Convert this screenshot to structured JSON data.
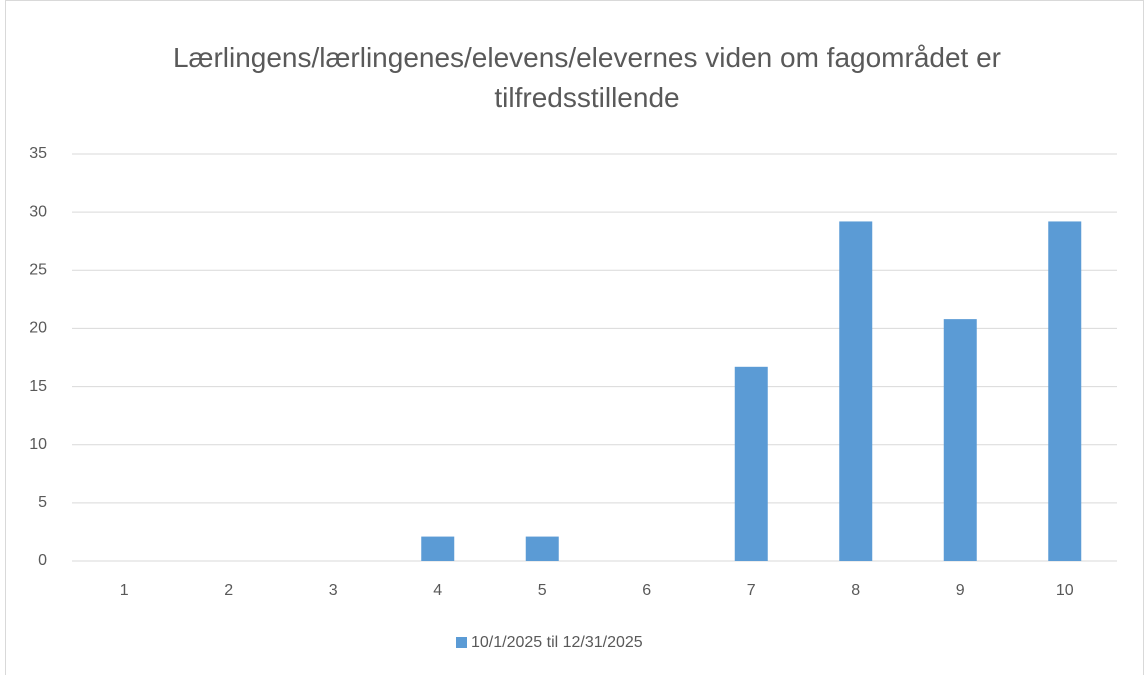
{
  "chart_data": {
    "type": "bar",
    "title": "Lærlingens/lærlingenes/elevens/elevernes viden om fagområdet er tilfredsstillende",
    "categories": [
      "1",
      "2",
      "3",
      "4",
      "5",
      "6",
      "7",
      "8",
      "9",
      "10"
    ],
    "series": [
      {
        "name": "10/1/2025 til 12/31/2025",
        "color": "#5b9bd5",
        "values": [
          0,
          0,
          0,
          2.1,
          2.1,
          0,
          16.7,
          29.2,
          20.8,
          29.2
        ]
      }
    ],
    "ylim": [
      0,
      35
    ],
    "yticks": [
      0,
      5,
      10,
      15,
      20,
      25,
      30,
      35
    ],
    "grid": true,
    "legend": "bottom"
  }
}
